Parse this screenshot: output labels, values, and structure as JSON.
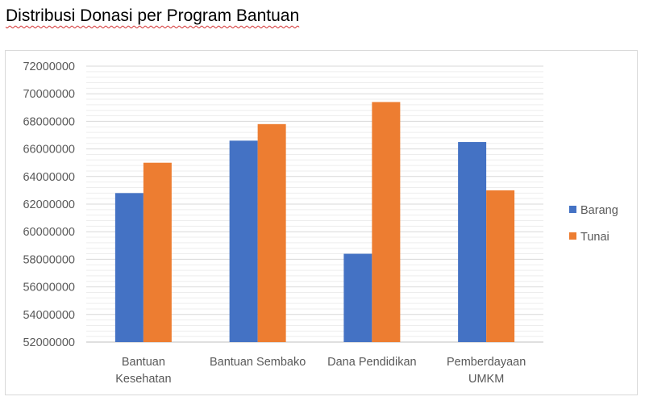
{
  "document": {
    "title": "Distribusi Donasi per Program Bantuan"
  },
  "chart_data": {
    "type": "bar",
    "title": "",
    "xlabel": "",
    "ylabel": "",
    "categories": [
      [
        "Bantuan",
        "Kesehatan"
      ],
      [
        "Bantuan Sembako"
      ],
      [
        "Dana Pendidikan"
      ],
      [
        "Pemberdayaan",
        "UMKM"
      ]
    ],
    "series": [
      {
        "name": "Barang",
        "color": "#4472c4",
        "values": [
          62800000,
          66600000,
          58400000,
          66500000
        ]
      },
      {
        "name": "Tunai",
        "color": "#ed7d31",
        "values": [
          65000000,
          67800000,
          69400000,
          63000000
        ]
      }
    ],
    "ylim": [
      52000000,
      72000000
    ],
    "yticks": [
      "52000000",
      "54000000",
      "56000000",
      "58000000",
      "60000000",
      "62000000",
      "64000000",
      "66000000",
      "68000000",
      "70000000",
      "72000000"
    ],
    "grid": true,
    "legend_position": "right"
  }
}
